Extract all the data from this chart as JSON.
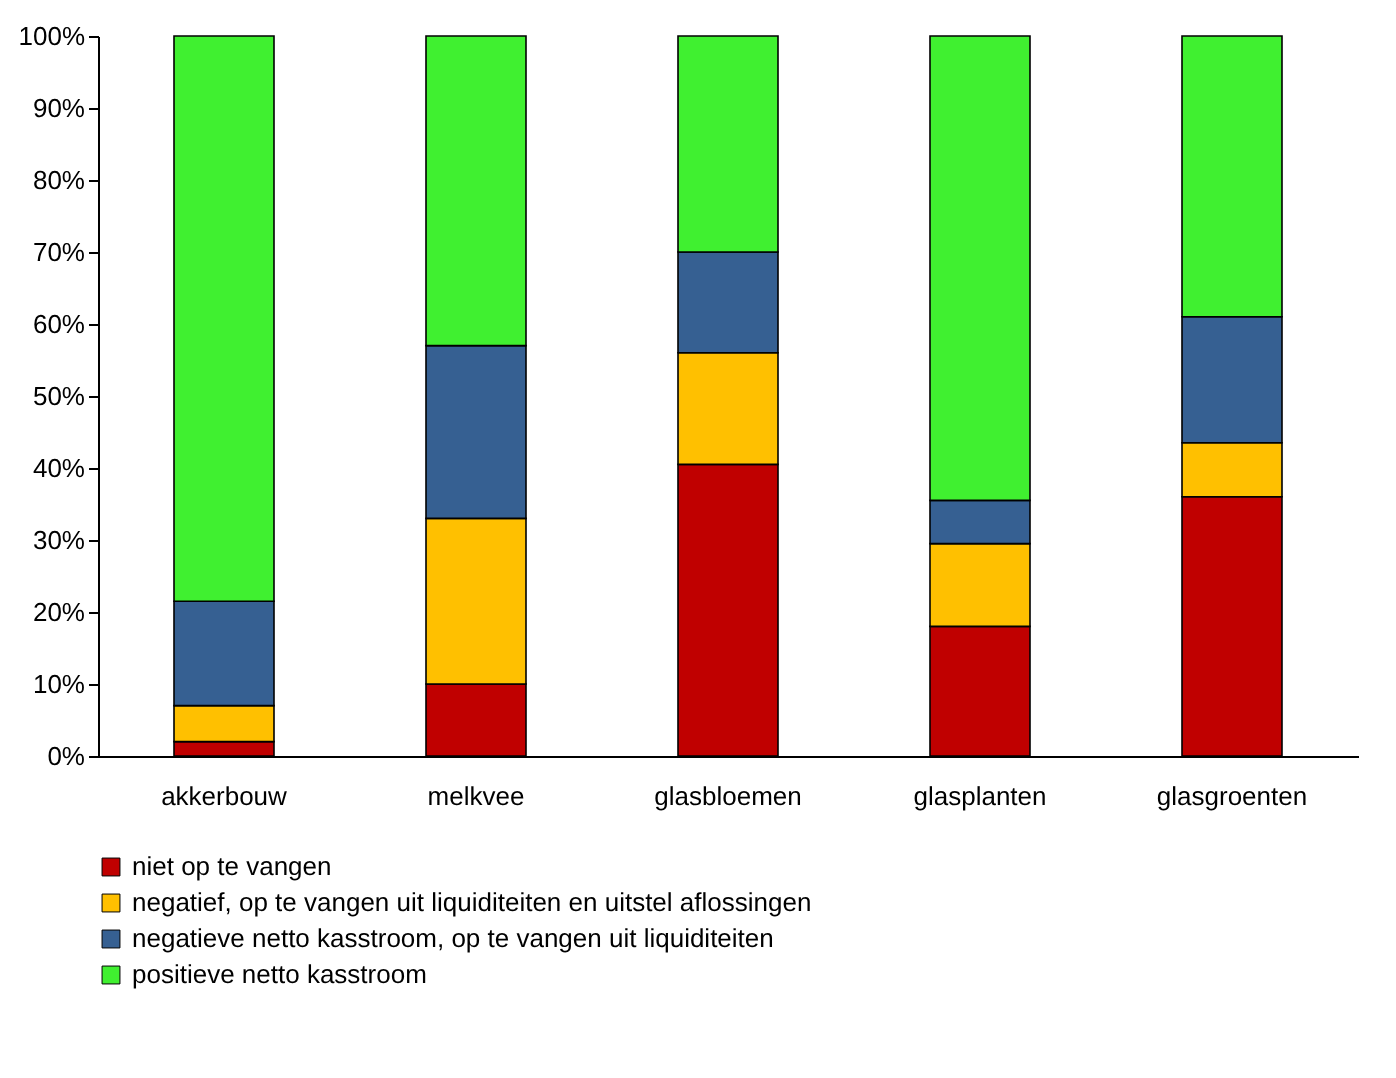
{
  "chart_data": {
    "type": "bar",
    "stacked": true,
    "categories": [
      "akkerbouw",
      "melkvee",
      "glasbloemen",
      "glasplanten",
      "glasgroenten"
    ],
    "series": [
      {
        "name": "niet op te vangen",
        "color": "#c00000",
        "values": [
          2,
          10,
          40.5,
          18,
          36
        ]
      },
      {
        "name": "negatief, op te vangen uit liquiditeiten en uitstel aflossingen",
        "color": "#ffc000",
        "values": [
          5,
          23,
          15.5,
          11.5,
          7.5
        ]
      },
      {
        "name": "negatieve netto kasstroom, op te vangen uit liquiditeiten",
        "color": "#366092",
        "values": [
          14.5,
          24,
          14,
          6,
          17.5
        ]
      },
      {
        "name": "positieve netto kasstroom",
        "color": "#40f030",
        "values": [
          78.5,
          43,
          30,
          64.5,
          39
        ]
      }
    ],
    "ylim": [
      0,
      100
    ],
    "yticks": [
      {
        "value": 0,
        "label": "0%"
      },
      {
        "value": 10,
        "label": "10%"
      },
      {
        "value": 20,
        "label": "20%"
      },
      {
        "value": 30,
        "label": "30%"
      },
      {
        "value": 40,
        "label": "40%"
      },
      {
        "value": 50,
        "label": "50%"
      },
      {
        "value": 60,
        "label": "60%"
      },
      {
        "value": 70,
        "label": "70%"
      },
      {
        "value": 80,
        "label": "80%"
      },
      {
        "value": 90,
        "label": "90%"
      },
      {
        "value": 100,
        "label": "100%"
      }
    ],
    "legend": "bottom",
    "grid": false
  }
}
